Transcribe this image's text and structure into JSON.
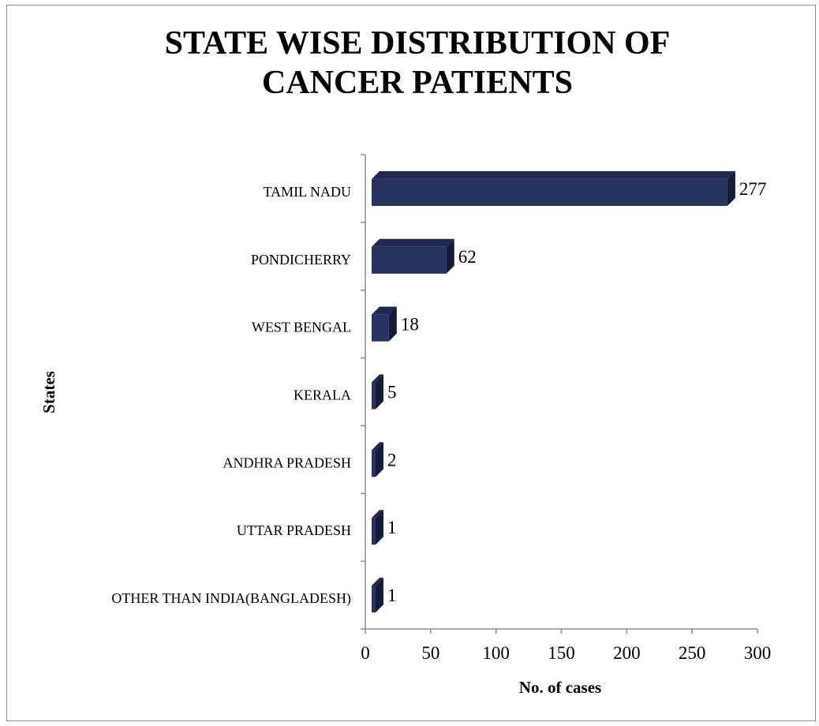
{
  "chart_data": {
    "type": "bar",
    "orientation": "horizontal",
    "title": "STATE WISE DISTRIBUTION OF CANCER PATIENTS",
    "title_lines": [
      "STATE WISE DISTRIBUTION OF",
      "CANCER PATIENTS"
    ],
    "xlabel": "No. of cases",
    "ylabel": "States",
    "categories": [
      "TAMIL NADU",
      "PONDICHERRY",
      "WEST BENGAL",
      "KERALA",
      "ANDHRA PRADESH",
      "UTTAR PRADESH",
      "OTHER THAN INDIA(BANGLADESH)"
    ],
    "values": [
      277,
      62,
      18,
      5,
      2,
      1,
      1
    ],
    "data_labels": [
      "277",
      "62",
      "18",
      "5",
      "2",
      "1",
      "1"
    ],
    "xlim": [
      0,
      300
    ],
    "xticks": [
      0,
      50,
      100,
      150,
      200,
      250,
      300
    ],
    "grid": false,
    "legend": "none",
    "bar_color": "#27335f",
    "bar_top_color": "#1f2850",
    "bar_side_color": "#151b38"
  }
}
